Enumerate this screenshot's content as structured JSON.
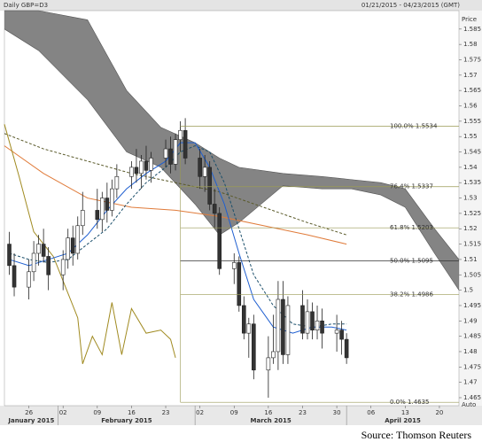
{
  "chart_data": {
    "type": "candlestick",
    "title": "Daily GBP=D3",
    "subtitle": "01/21/2015 - 04/23/2015 (GMT)",
    "y_label": "Price",
    "auto_label": "Auto",
    "source": "Source: Thomson Reuters",
    "xlim": [
      -5,
      88
    ],
    "ylim": [
      1.4624,
      1.591
    ],
    "xticks": [
      {
        "value": 0,
        "label": "26"
      },
      {
        "value": 7,
        "label": "02"
      },
      {
        "value": 14,
        "label": "09"
      },
      {
        "value": 21,
        "label": "16"
      },
      {
        "value": 28,
        "label": "23"
      },
      {
        "value": 35,
        "label": "02"
      },
      {
        "value": 42,
        "label": "09"
      },
      {
        "value": 49,
        "label": "16"
      },
      {
        "value": 56,
        "label": "23"
      },
      {
        "value": 63,
        "label": "30"
      },
      {
        "value": 70,
        "label": "06"
      },
      {
        "value": 77,
        "label": "13"
      },
      {
        "value": 84,
        "label": "20"
      }
    ],
    "month_ticks": [
      {
        "value": -25,
        "label": "January 2015"
      },
      {
        "value": 6,
        "label": "February 2015"
      },
      {
        "value": 34,
        "label": "March 2015"
      },
      {
        "value": 65,
        "label": "April 2015"
      }
    ],
    "yticks": [
      1.465,
      1.47,
      1.475,
      1.48,
      1.485,
      1.49,
      1.495,
      1.5,
      1.505,
      1.51,
      1.515,
      1.52,
      1.525,
      1.53,
      1.535,
      1.54,
      1.545,
      1.55,
      1.555,
      1.56,
      1.565,
      1.57,
      1.575,
      1.58,
      1.585
    ],
    "candles": {
      "up_color": "#ffffff",
      "down_color": "#333333",
      "edge_color": "#222222",
      "x": [
        -4,
        -3,
        0,
        1,
        2,
        3,
        4,
        7,
        8,
        9,
        10,
        11,
        14,
        15,
        16,
        17,
        18,
        21,
        22,
        23,
        24,
        25,
        28,
        29,
        30,
        31,
        32,
        35,
        36,
        37,
        38,
        39,
        42,
        43,
        44,
        45,
        46,
        49,
        50,
        51,
        52,
        53,
        56,
        57,
        58,
        59,
        60,
        63,
        64,
        65
      ],
      "open": [
        1.515,
        1.508,
        1.501,
        1.506,
        1.512,
        1.515,
        1.511,
        1.505,
        1.51,
        1.517,
        1.512,
        1.521,
        1.526,
        1.523,
        1.53,
        1.526,
        1.533,
        1.537,
        1.54,
        1.538,
        1.542,
        1.539,
        1.543,
        1.546,
        1.541,
        1.549,
        1.552,
        1.543,
        1.537,
        1.54,
        1.528,
        1.525,
        1.507,
        1.509,
        1.495,
        1.486,
        1.489,
        1.474,
        1.478,
        1.48,
        1.497,
        1.479,
        1.495,
        1.486,
        1.493,
        1.487,
        1.49,
        1.486,
        1.487,
        1.484
      ],
      "high": [
        1.519,
        1.512,
        1.51,
        1.516,
        1.518,
        1.52,
        1.514,
        1.513,
        1.52,
        1.521,
        1.524,
        1.532,
        1.533,
        1.532,
        1.535,
        1.536,
        1.541,
        1.542,
        1.546,
        1.544,
        1.547,
        1.545,
        1.549,
        1.55,
        1.551,
        1.555,
        1.556,
        1.546,
        1.544,
        1.542,
        1.533,
        1.527,
        1.512,
        1.511,
        1.498,
        1.491,
        1.492,
        1.485,
        1.492,
        1.503,
        1.503,
        1.498,
        1.5,
        1.497,
        1.496,
        1.495,
        1.494,
        1.492,
        1.49,
        1.486
      ],
      "low": [
        1.505,
        1.498,
        1.497,
        1.503,
        1.508,
        1.509,
        1.5,
        1.5,
        1.507,
        1.508,
        1.51,
        1.518,
        1.52,
        1.519,
        1.522,
        1.524,
        1.53,
        1.533,
        1.535,
        1.533,
        1.536,
        1.535,
        1.54,
        1.538,
        1.539,
        1.545,
        1.541,
        1.533,
        1.532,
        1.526,
        1.52,
        1.505,
        1.502,
        1.493,
        1.484,
        1.478,
        1.471,
        1.465,
        1.476,
        1.474,
        1.476,
        1.476,
        1.484,
        1.484,
        1.484,
        1.484,
        1.481,
        1.48,
        1.479,
        1.476
      ],
      "close": [
        1.508,
        1.501,
        1.506,
        1.512,
        1.515,
        1.511,
        1.505,
        1.51,
        1.517,
        1.512,
        1.521,
        1.526,
        1.523,
        1.53,
        1.526,
        1.533,
        1.537,
        1.54,
        1.538,
        1.542,
        1.539,
        1.543,
        1.546,
        1.541,
        1.549,
        1.552,
        1.543,
        1.537,
        1.54,
        1.528,
        1.525,
        1.507,
        1.509,
        1.495,
        1.486,
        1.489,
        1.474,
        1.478,
        1.48,
        1.497,
        1.479,
        1.495,
        1.486,
        1.493,
        1.487,
        1.49,
        1.486,
        1.487,
        1.484,
        1.478
      ]
    },
    "cloud": {
      "color": "#6f6f6f",
      "x": [
        -5,
        2,
        12,
        20,
        27,
        34,
        39,
        43,
        52,
        60,
        66,
        72,
        77,
        83,
        88
      ],
      "upper": [
        1.591,
        1.591,
        1.588,
        1.565,
        1.553,
        1.548,
        1.543,
        1.54,
        1.538,
        1.537,
        1.536,
        1.535,
        1.533,
        1.52,
        1.51
      ],
      "lower": [
        1.585,
        1.578,
        1.562,
        1.545,
        1.54,
        1.528,
        1.518,
        1.522,
        1.534,
        1.533,
        1.533,
        1.531,
        1.527,
        1.512,
        1.5
      ]
    },
    "lines": [
      {
        "color": "#5a5a2a",
        "dash": true,
        "x": [
          -5,
          3,
          12,
          21,
          30,
          39,
          48,
          57,
          65
        ],
        "values": [
          1.551,
          1.546,
          1.542,
          1.538,
          1.535,
          1.532,
          1.527,
          1.522,
          1.518
        ]
      },
      {
        "color": "#e07b3a",
        "dash": false,
        "x": [
          -5,
          3,
          12,
          21,
          30,
          39,
          48,
          57,
          65
        ],
        "values": [
          1.547,
          1.538,
          1.53,
          1.527,
          1.526,
          1.524,
          1.521,
          1.518,
          1.515
        ]
      },
      {
        "color": "#a08a20",
        "dash": false,
        "x": [
          -5,
          -2,
          1,
          5,
          8,
          10,
          11,
          13,
          15,
          17,
          19,
          21,
          24,
          27,
          29,
          30
        ],
        "values": [
          1.554,
          1.537,
          1.519,
          1.511,
          1.499,
          1.491,
          1.476,
          1.485,
          1.479,
          1.496,
          1.479,
          1.494,
          1.486,
          1.487,
          1.484,
          1.478
        ]
      },
      {
        "color": "#1b4f6b",
        "dash": true,
        "x": [
          -4,
          0,
          4,
          8,
          12,
          16,
          20,
          24,
          28,
          31,
          34,
          37,
          40,
          43,
          46,
          50,
          54,
          58,
          62,
          65
        ],
        "values": [
          1.512,
          1.51,
          1.509,
          1.51,
          1.515,
          1.52,
          1.528,
          1.535,
          1.54,
          1.545,
          1.547,
          1.545,
          1.535,
          1.52,
          1.505,
          1.495,
          1.489,
          1.488,
          1.489,
          1.489
        ]
      },
      {
        "color": "#1f5fd0",
        "dash": false,
        "x": [
          -4,
          0,
          4,
          8,
          12,
          16,
          20,
          24,
          28,
          31,
          34,
          37,
          40,
          43,
          46,
          50,
          54,
          58,
          62,
          65
        ],
        "values": [
          1.51,
          1.508,
          1.51,
          1.512,
          1.518,
          1.526,
          1.533,
          1.538,
          1.542,
          1.548,
          1.548,
          1.54,
          1.528,
          1.512,
          1.497,
          1.488,
          1.486,
          1.488,
          1.488,
          1.487
        ]
      }
    ],
    "fib_start_x": 31,
    "fib_color": "#9a9a55",
    "fib_levels": [
      {
        "value": 1.5534,
        "label": "100.0% 1.5534"
      },
      {
        "value": 1.5337,
        "label": "76.4% 1.5337"
      },
      {
        "value": 1.5203,
        "label": "61.8% 1.5203"
      },
      {
        "value": 1.5095,
        "label": "50.0% 1.5095"
      },
      {
        "value": 1.4986,
        "label": "38.2% 1.4986"
      },
      {
        "value": 1.4635,
        "label": "0.0% 1.4635"
      }
    ]
  }
}
